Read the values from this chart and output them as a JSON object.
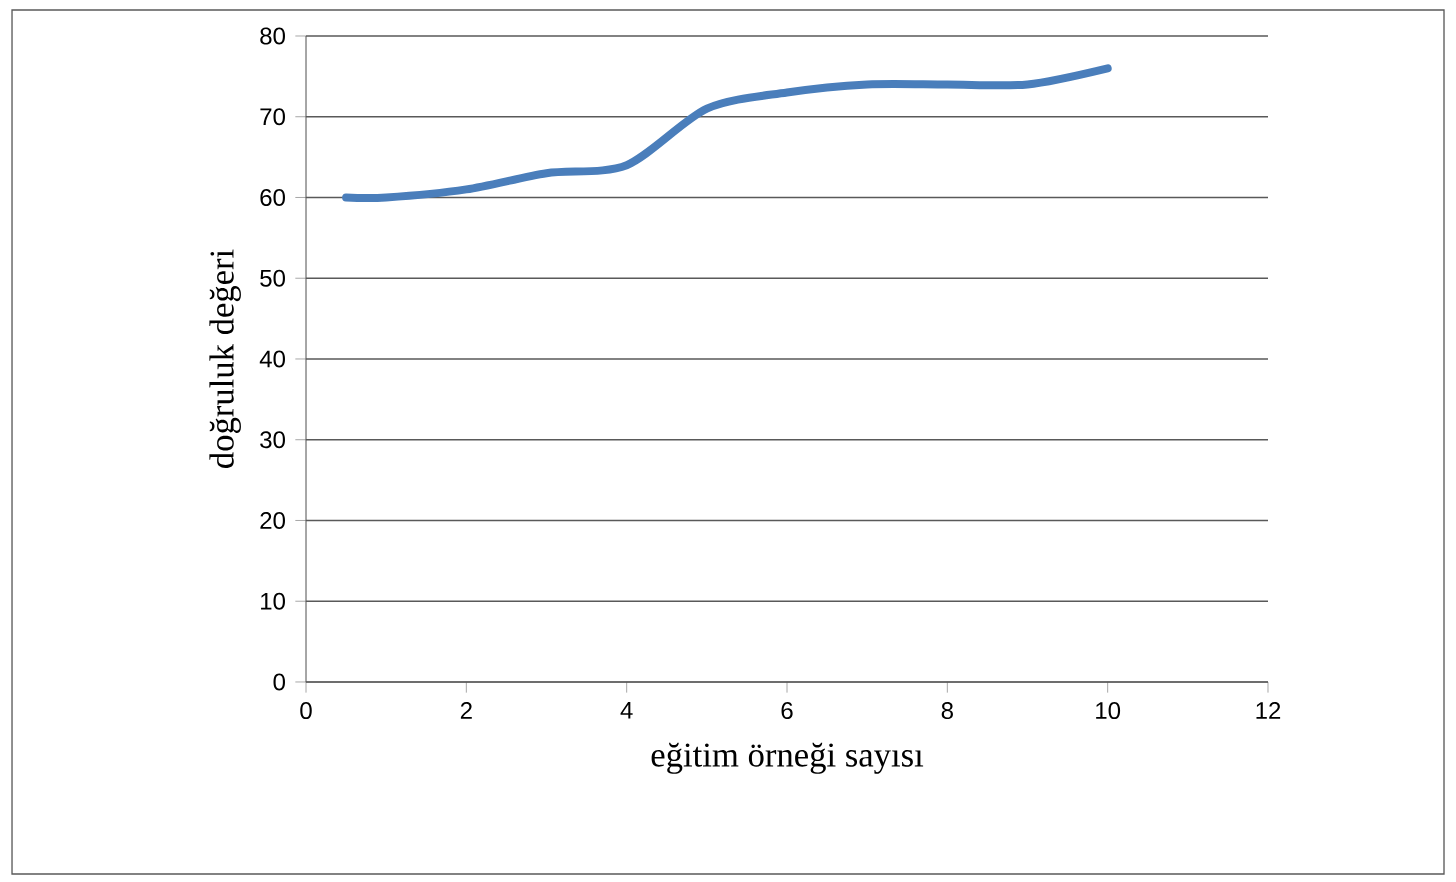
{
  "chart_data": {
    "type": "line",
    "xlabel": "eğitim örneği sayısı",
    "ylabel": "doğruluk değeri",
    "x": [
      0.5,
      1,
      2,
      3,
      4,
      5,
      6,
      7,
      8,
      9,
      10
    ],
    "series": [
      {
        "color": "#4a7ebb",
        "values": [
          60,
          60,
          61,
          63,
          64,
          71,
          73,
          74,
          74,
          74,
          76
        ]
      }
    ],
    "xlim": [
      0,
      12
    ],
    "ylim": [
      0,
      80
    ],
    "xticks": [
      0,
      2,
      4,
      6,
      8,
      10,
      12
    ],
    "yticks": [
      0,
      10,
      20,
      30,
      40,
      50,
      60,
      70,
      80
    ],
    "grid": "y",
    "marker": "none",
    "line_style": "solid"
  }
}
